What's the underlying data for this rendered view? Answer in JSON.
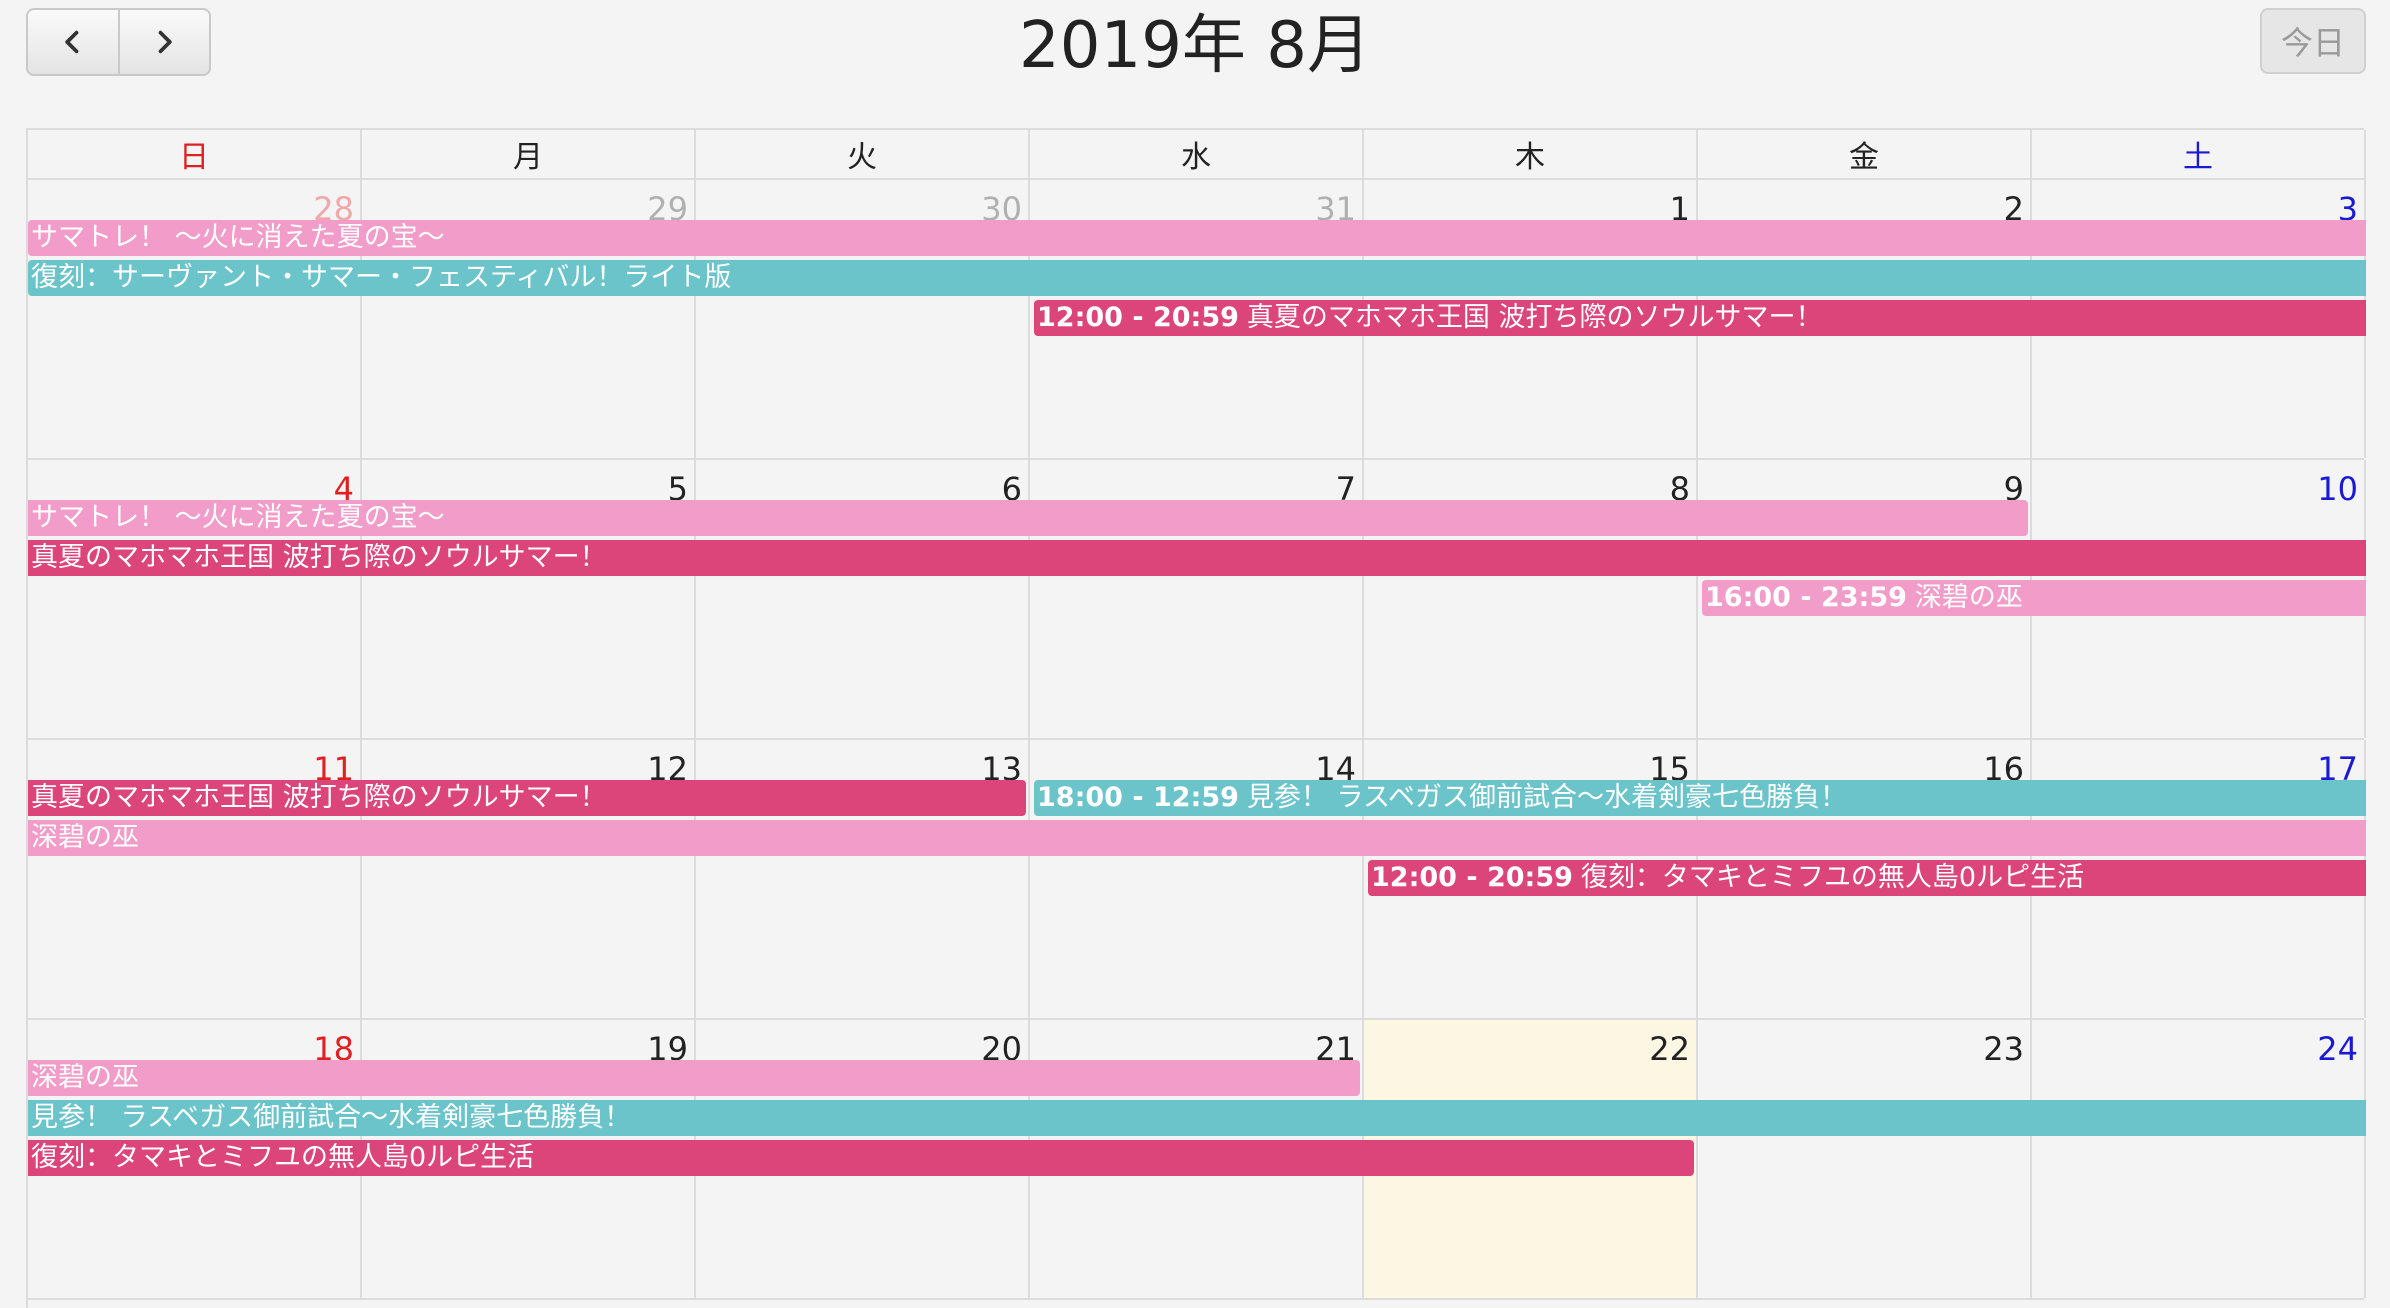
{
  "header": {
    "title": "2019年 8月",
    "prev_icon": "chevron-left-icon",
    "next_icon": "chevron-right-icon",
    "today_label": "今日"
  },
  "weekdays": [
    "日",
    "月",
    "火",
    "水",
    "木",
    "金",
    "土"
  ],
  "weeks": [
    {
      "days": [
        {
          "num": "28",
          "other": true
        },
        {
          "num": "29",
          "other": true
        },
        {
          "num": "30",
          "other": true
        },
        {
          "num": "31",
          "other": true
        },
        {
          "num": "1"
        },
        {
          "num": "2"
        },
        {
          "num": "3"
        }
      ],
      "events": [
        {
          "title": "サマトレ！ 〜火に消えた夏の宝〜",
          "time": "",
          "color": "pink",
          "start": 0,
          "end": 6,
          "lane": 0
        },
        {
          "title": "復刻：サーヴァント・サマー・フェスティバル！ライト版",
          "time": "",
          "color": "teal",
          "start": 0,
          "end": 6,
          "lane": 1
        },
        {
          "title": "真夏のマホマホ王国 波打ち際のソウルサマー！",
          "time": "12:00 - 20:59",
          "color": "red",
          "start": 3,
          "end": 6,
          "lane": 2
        }
      ]
    },
    {
      "days": [
        {
          "num": "4"
        },
        {
          "num": "5"
        },
        {
          "num": "6"
        },
        {
          "num": "7"
        },
        {
          "num": "8"
        },
        {
          "num": "9"
        },
        {
          "num": "10"
        }
      ],
      "events": [
        {
          "title": "サマトレ！ 〜火に消えた夏の宝〜",
          "time": "",
          "color": "pink",
          "start": 0,
          "end": 5,
          "lane": 0
        },
        {
          "title": "真夏のマホマホ王国 波打ち際のソウルサマー！",
          "time": "",
          "color": "red",
          "start": 0,
          "end": 6,
          "lane": 1
        },
        {
          "title": "深碧の巫",
          "time": "16:00 - 23:59",
          "color": "pink",
          "start": 5,
          "end": 6,
          "lane": 2
        }
      ]
    },
    {
      "days": [
        {
          "num": "11"
        },
        {
          "num": "12"
        },
        {
          "num": "13"
        },
        {
          "num": "14"
        },
        {
          "num": "15"
        },
        {
          "num": "16"
        },
        {
          "num": "17"
        }
      ],
      "events": [
        {
          "title": "真夏のマホマホ王国 波打ち際のソウルサマー！",
          "time": "",
          "color": "red",
          "start": 0,
          "end": 2,
          "lane": 0
        },
        {
          "title": "見参！ ラスベガス御前試合〜水着剣豪七色勝負！",
          "time": "18:00 - 12:59",
          "color": "teal",
          "start": 3,
          "end": 6,
          "lane": 0
        },
        {
          "title": "深碧の巫",
          "time": "",
          "color": "pink",
          "start": 0,
          "end": 6,
          "lane": 1
        },
        {
          "title": "復刻：タマキとミフユの無人島0ルピ生活",
          "time": "12:00 - 20:59",
          "color": "red",
          "start": 4,
          "end": 6,
          "lane": 2
        }
      ]
    },
    {
      "days": [
        {
          "num": "18"
        },
        {
          "num": "19"
        },
        {
          "num": "20"
        },
        {
          "num": "21"
        },
        {
          "num": "22",
          "today": true
        },
        {
          "num": "23"
        },
        {
          "num": "24"
        }
      ],
      "events": [
        {
          "title": "深碧の巫",
          "time": "",
          "color": "pink",
          "start": 0,
          "end": 3,
          "lane": 0
        },
        {
          "title": "見参！ ラスベガス御前試合〜水着剣豪七色勝負！",
          "time": "",
          "color": "teal",
          "start": 0,
          "end": 6,
          "lane": 1
        },
        {
          "title": "復刻：タマキとミフユの無人島0ルピ生活",
          "time": "",
          "color": "red",
          "start": 0,
          "end": 4,
          "lane": 2
        }
      ]
    }
  ],
  "colors": {
    "pink": "#f19cc9",
    "teal": "#6cc4cb",
    "red": "#dc4579",
    "today_bg": "#fcf7e3",
    "sunday": "#e02020",
    "saturday": "#1a1ad0"
  }
}
